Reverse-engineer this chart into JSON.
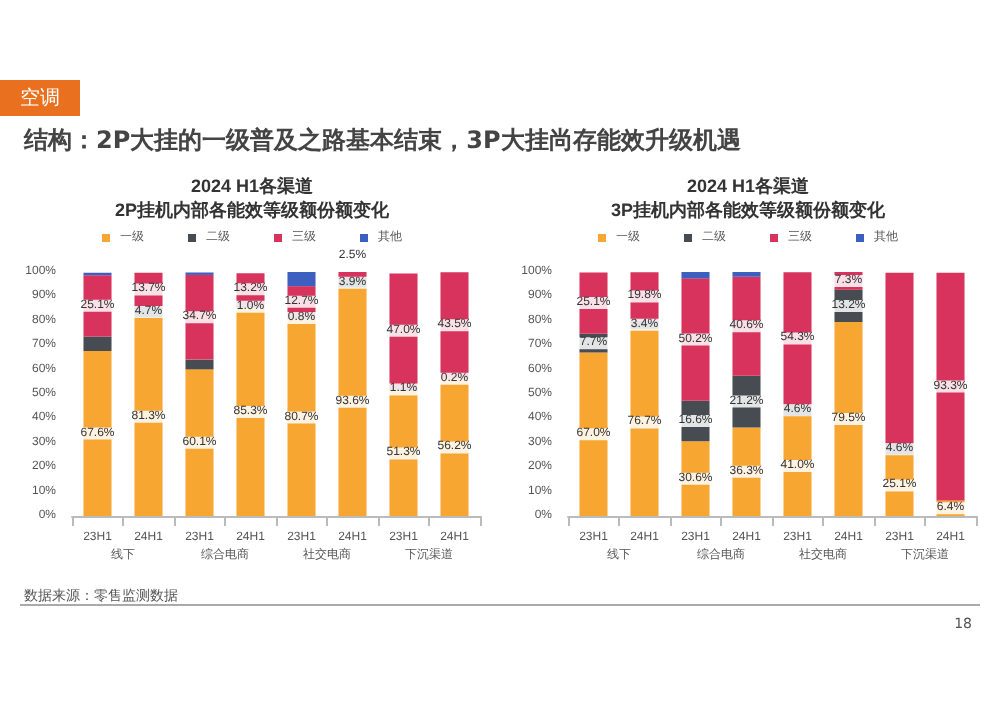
{
  "chart_data": [
    {
      "type": "other",
      "title": "结构：2P大挂的一级普及之路基本结束，3P大挂尚存能效升级机遇",
      "annotations": [
        "空调",
        "数据来源：零售监测数据",
        "18"
      ]
    },
    {
      "type": "bar",
      "title": "2024 H1各渠道\n2P挂机内部各能效等级额份额变化",
      "categories": [
        "23H1",
        "24H1",
        "23H1",
        "24H1",
        "23H1",
        "24H1",
        "23H1",
        "24H1"
      ],
      "stacked": true,
      "legend": "top",
      "grid": false,
      "ylim": [
        0,
        100
      ],
      "yticks": [
        {
          "value": 0,
          "label": "0%"
        },
        {
          "value": 10,
          "label": "10%"
        },
        {
          "value": 20,
          "label": "20%"
        },
        {
          "value": 30,
          "label": "30%"
        },
        {
          "value": 40,
          "label": "40%"
        },
        {
          "value": 50,
          "label": "50%"
        },
        {
          "value": 60,
          "label": "60%"
        },
        {
          "value": 70,
          "label": "70%"
        },
        {
          "value": 80,
          "label": "80%"
        },
        {
          "value": 90,
          "label": "90%"
        },
        {
          "value": 100,
          "label": "100%"
        }
      ],
      "annotations": [
        "线下",
        "综合电商",
        "社交电商",
        "下沉渠道"
      ],
      "series": [
        {
          "name": "一级",
          "color": "#f7a631",
          "values": [
            67.6,
            81.3,
            60.1,
            85.3,
            80.7,
            93.6,
            51.3,
            56.2
          ],
          "value_labels": [
            "67.6%",
            "81.3%",
            "60.1%",
            "85.3%",
            "80.7%",
            "93.6%",
            "51.3%",
            "56.2%"
          ]
        },
        {
          "name": "二级",
          "color": "#474c52",
          "values": [
            6,
            4.7,
            4,
            1.0,
            0.8,
            3.9,
            1.1,
            0.2
          ],
          "value_labels": [
            null,
            "4.7%",
            null,
            "1.0%",
            "0.8%",
            "3.9%",
            "1.1%",
            "0.2%"
          ]
        },
        {
          "name": "三级",
          "color": "#d7335c",
          "values": [
            25.1,
            13.7,
            34.7,
            13.2,
            12.7,
            2.5,
            47.0,
            43.5
          ],
          "value_labels": [
            "25.1%",
            "13.7%",
            "34.7%",
            "13.2%",
            "12.7%",
            "2.5%",
            "47.0%",
            "43.5%"
          ]
        },
        {
          "name": "其他",
          "color": "#3d5fc0",
          "values": [
            1,
            0,
            1,
            0,
            6,
            0,
            0,
            null
          ],
          "value_labels": [
            null,
            null,
            null,
            null,
            null,
            null,
            null,
            null
          ]
        }
      ]
    },
    {
      "type": "bar",
      "title": "2024 H1各渠道\n3P挂机内部各能效等级额份额变化",
      "categories": [
        "23H1",
        "24H1",
        "23H1",
        "24H1",
        "23H1",
        "24H1",
        "23H1",
        "24H1"
      ],
      "stacked": true,
      "legend": "top",
      "grid": false,
      "ylim": [
        0,
        100
      ],
      "yticks": [
        {
          "value": 0,
          "label": "0%"
        },
        {
          "value": 10,
          "label": "10%"
        },
        {
          "value": 20,
          "label": "20%"
        },
        {
          "value": 30,
          "label": "30%"
        },
        {
          "value": 40,
          "label": "40%"
        },
        {
          "value": 50,
          "label": "50%"
        },
        {
          "value": 60,
          "label": "60%"
        },
        {
          "value": 70,
          "label": "70%"
        },
        {
          "value": 80,
          "label": "80%"
        },
        {
          "value": 90,
          "label": "90%"
        },
        {
          "value": 100,
          "label": "100%"
        }
      ],
      "annotations": [
        "线下",
        "综合电商",
        "社交电商",
        "下沉渠道"
      ],
      "series": [
        {
          "name": "一级",
          "color": "#f7a631",
          "values": [
            67.0,
            76.7,
            30.6,
            36.3,
            41.0,
            79.5,
            25.1,
            6.4
          ],
          "value_labels": [
            "67.0%",
            "76.7%",
            "30.6%",
            "36.3%",
            "41.0%",
            "79.5%",
            "25.1%",
            "6.4%"
          ]
        },
        {
          "name": "二级",
          "color": "#474c52",
          "values": [
            7.7,
            3.4,
            16.6,
            21.2,
            4.6,
            13.2,
            4.6,
            0
          ],
          "value_labels": [
            "7.7%",
            "3.4%",
            "16.6%",
            "21.2%",
            "4.6%",
            "13.2%",
            "4.6%",
            null
          ]
        },
        {
          "name": "三级",
          "color": "#d7335c",
          "values": [
            25.1,
            19.8,
            50.2,
            40.6,
            54.3,
            7.3,
            70,
            93.3
          ],
          "value_labels": [
            "25.1%",
            "19.8%",
            "50.2%",
            "40.6%",
            "54.3%",
            "7.3%",
            null,
            "93.3%"
          ]
        },
        {
          "name": "其他",
          "color": "#3d5fc0",
          "values": [
            0,
            null,
            3,
            2,
            null,
            0,
            0,
            null
          ],
          "value_labels": [
            null,
            null,
            null,
            null,
            null,
            null,
            null,
            null
          ]
        }
      ]
    }
  ]
}
